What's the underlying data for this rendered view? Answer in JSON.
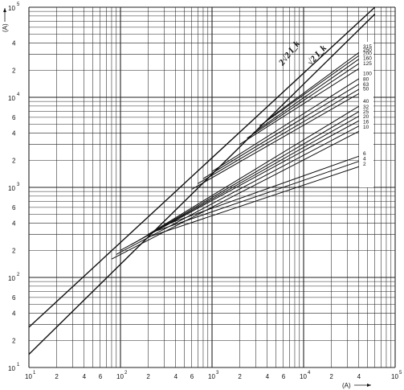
{
  "chart_data": {
    "type": "line",
    "title": "",
    "xlabel": "(A)",
    "ylabel": "(A)",
    "x_scale": "log",
    "y_scale": "log",
    "xlim": [
      10,
      100000
    ],
    "ylim": [
      10,
      100000
    ],
    "grid": true,
    "x_ticks": [
      {
        "mant": "10",
        "exp": "1",
        "value": 10
      },
      {
        "mant": "2",
        "exp": "",
        "value": 20
      },
      {
        "mant": "4",
        "exp": "",
        "value": 40
      },
      {
        "mant": "6",
        "exp": "",
        "value": 60
      },
      {
        "mant": "10",
        "exp": "2",
        "value": 100
      },
      {
        "mant": "2",
        "exp": "",
        "value": 200
      },
      {
        "mant": "4",
        "exp": "",
        "value": 400
      },
      {
        "mant": "6",
        "exp": "",
        "value": 600
      },
      {
        "mant": "10",
        "exp": "3",
        "value": 1000
      },
      {
        "mant": "2",
        "exp": "",
        "value": 2000
      },
      {
        "mant": "4",
        "exp": "",
        "value": 4000
      },
      {
        "mant": "6",
        "exp": "",
        "value": 6000
      },
      {
        "mant": "10",
        "exp": "4",
        "value": 10000
      },
      {
        "mant": "2",
        "exp": "",
        "value": 20000
      },
      {
        "mant": "4",
        "exp": "",
        "value": 40000
      },
      {
        "mant": "10",
        "exp": "5",
        "value": 100000
      }
    ],
    "y_ticks": [
      {
        "mant": "10",
        "exp": "1",
        "value": 10
      },
      {
        "mant": "2",
        "exp": "",
        "value": 20
      },
      {
        "mant": "4",
        "exp": "",
        "value": 40
      },
      {
        "mant": "6",
        "exp": "",
        "value": 60
      },
      {
        "mant": "10",
        "exp": "2",
        "value": 100
      },
      {
        "mant": "2",
        "exp": "",
        "value": 200
      },
      {
        "mant": "4",
        "exp": "",
        "value": 400
      },
      {
        "mant": "6",
        "exp": "",
        "value": 600
      },
      {
        "mant": "10",
        "exp": "3",
        "value": 1000
      },
      {
        "mant": "2",
        "exp": "",
        "value": 2000
      },
      {
        "mant": "4",
        "exp": "",
        "value": 4000
      },
      {
        "mant": "6",
        "exp": "",
        "value": 6000
      },
      {
        "mant": "10",
        "exp": "4",
        "value": 10000
      },
      {
        "mant": "2",
        "exp": "",
        "value": 20000
      },
      {
        "mant": "4",
        "exp": "",
        "value": 40000
      },
      {
        "mant": "10",
        "exp": "5",
        "value": 100000
      }
    ],
    "reference_lines": [
      {
        "label": "2√2 I_k",
        "points": [
          [
            10,
            28
          ],
          [
            60000,
            100000
          ]
        ]
      },
      {
        "label": "√2 I_k",
        "points": [
          [
            10,
            14
          ],
          [
            60000,
            84000
          ]
        ]
      }
    ],
    "series": [
      {
        "name": "2",
        "points": [
          [
            200,
            280
          ],
          [
            50000,
            1830
          ]
        ]
      },
      {
        "name": "4",
        "points": [
          [
            250,
            330
          ],
          [
            50000,
            2100
          ]
        ]
      },
      {
        "name": "6",
        "points": [
          [
            300,
            380
          ],
          [
            50000,
            2400
          ]
        ]
      },
      {
        "name": "10",
        "points": [
          [
            80,
            160
          ],
          [
            50000,
            4700
          ]
        ]
      },
      {
        "name": "16",
        "points": [
          [
            90,
            180
          ],
          [
            50000,
            5400
          ]
        ]
      },
      {
        "name": "20",
        "points": [
          [
            100,
            200
          ],
          [
            50000,
            6200
          ]
        ]
      },
      {
        "name": "25",
        "points": [
          [
            130,
            230
          ],
          [
            50000,
            7000
          ]
        ]
      },
      {
        "name": "32",
        "points": [
          [
            160,
            260
          ],
          [
            50000,
            7900
          ]
        ]
      },
      {
        "name": "40",
        "points": [
          [
            200,
            300
          ],
          [
            50000,
            9100
          ]
        ]
      },
      {
        "name": "50",
        "points": [
          [
            600,
            950
          ],
          [
            50000,
            12500
          ]
        ]
      },
      {
        "name": "63",
        "points": [
          [
            700,
            1100
          ],
          [
            50000,
            14000
          ]
        ]
      },
      {
        "name": "80",
        "points": [
          [
            800,
            1250
          ],
          [
            50000,
            16000
          ]
        ]
      },
      {
        "name": "100",
        "points": [
          [
            1000,
            1500
          ],
          [
            50000,
            18500
          ]
        ]
      },
      {
        "name": "125",
        "points": [
          [
            2000,
            3000
          ],
          [
            50000,
            24000
          ]
        ]
      },
      {
        "name": "160",
        "points": [
          [
            2400,
            3500
          ],
          [
            50000,
            27500
          ]
        ]
      },
      {
        "name": "200",
        "points": [
          [
            2800,
            4000
          ],
          [
            50000,
            31000
          ]
        ]
      },
      {
        "name": "250",
        "points": [
          [
            3300,
            4800
          ],
          [
            50000,
            34000
          ]
        ]
      },
      {
        "name": "315",
        "points": [
          [
            4000,
            5600
          ],
          [
            50000,
            37000
          ]
        ]
      }
    ]
  }
}
